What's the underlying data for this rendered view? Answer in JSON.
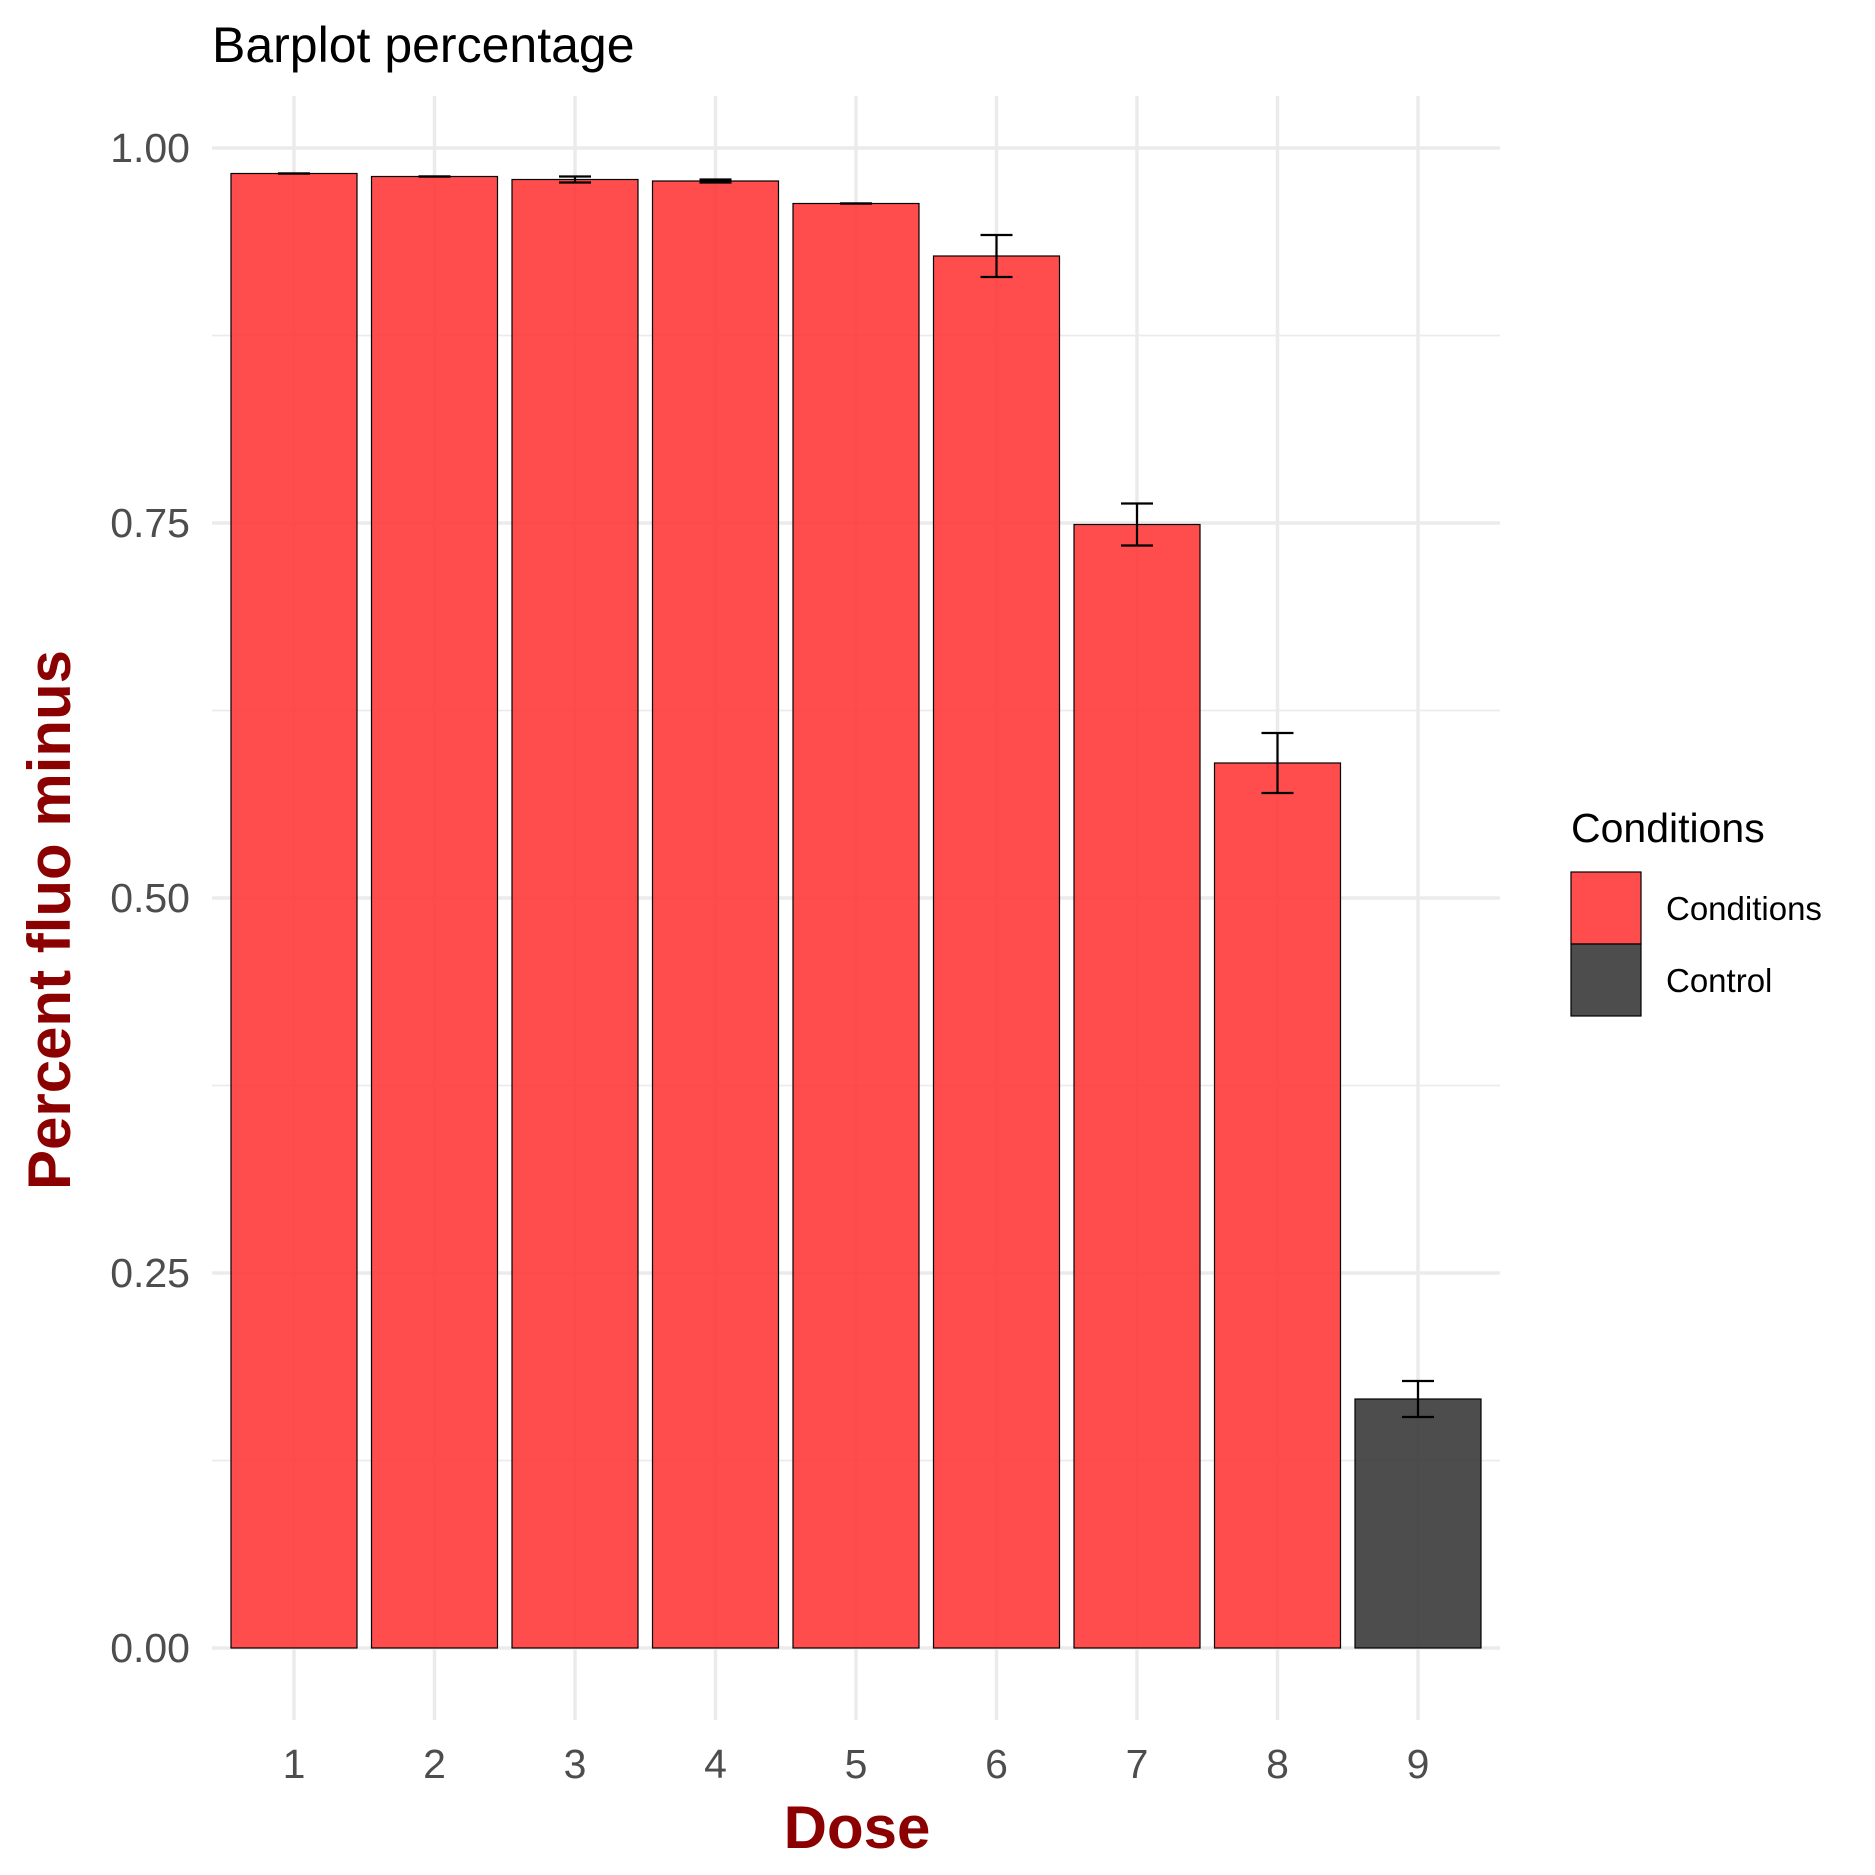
{
  "chart_data": {
    "type": "bar",
    "title": "Barplot percentage",
    "xlabel": "Dose",
    "ylabel": "Percent fluo minus",
    "categories": [
      "1",
      "2",
      "3",
      "4",
      "5",
      "6",
      "7",
      "8",
      "9"
    ],
    "values": [
      0.983,
      0.981,
      0.979,
      0.978,
      0.963,
      0.928,
      0.749,
      0.59,
      0.166
    ],
    "error_low": [
      0.983,
      0.981,
      0.977,
      0.977,
      0.963,
      0.914,
      0.735,
      0.57,
      0.154
    ],
    "error_high": [
      0.983,
      0.981,
      0.981,
      0.979,
      0.963,
      0.942,
      0.763,
      0.61,
      0.178
    ],
    "groups": [
      "Conditions",
      "Conditions",
      "Conditions",
      "Conditions",
      "Conditions",
      "Conditions",
      "Conditions",
      "Conditions",
      "Control"
    ],
    "ylim": [
      0,
      1.03
    ],
    "y_ticks": [
      "0.00",
      "0.25",
      "0.50",
      "0.75",
      "1.00"
    ],
    "grid": true,
    "legend": {
      "title": "Conditions",
      "placement": "right",
      "entries": [
        {
          "label": "Conditions",
          "color": "#ff3333"
        },
        {
          "label": "Control",
          "color": "#333333"
        }
      ]
    },
    "colors": {
      "Conditions": "#ff3333",
      "Control": "#333333",
      "axis_title": "#8b0000"
    },
    "bar_opacity": 0.87
  }
}
